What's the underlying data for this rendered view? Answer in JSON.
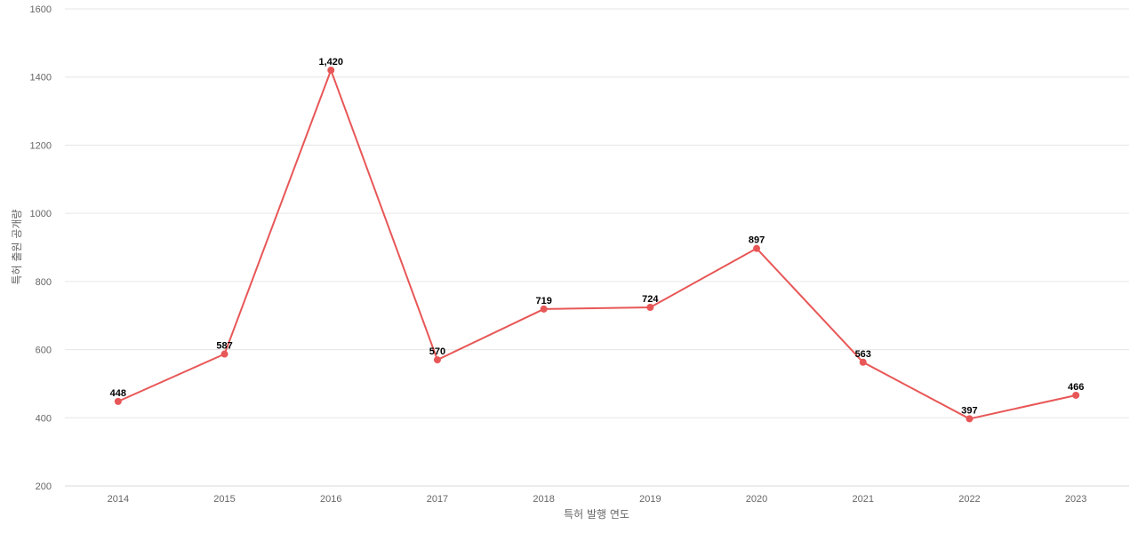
{
  "chart_data": {
    "type": "line",
    "title": "",
    "xlabel": "특허 발행 연도",
    "ylabel": "특허 출원 공개량",
    "x": [
      "2014",
      "2015",
      "2016",
      "2017",
      "2018",
      "2019",
      "2020",
      "2021",
      "2022",
      "2023"
    ],
    "series": [
      {
        "values": [
          448,
          587,
          1420,
          570,
          719,
          724,
          897,
          563,
          397,
          466
        ],
        "data_labels": [
          "448",
          "587",
          "1,420",
          "570",
          "719",
          "724",
          "897",
          "563",
          "397",
          "466"
        ],
        "color": "#e85757"
      }
    ],
    "ylim": [
      200,
      1600
    ],
    "y_ticks": [
      "200",
      "400",
      "600",
      "800",
      "1000",
      "1200",
      "1400",
      "1600"
    ],
    "grid": true,
    "legend": "none"
  }
}
